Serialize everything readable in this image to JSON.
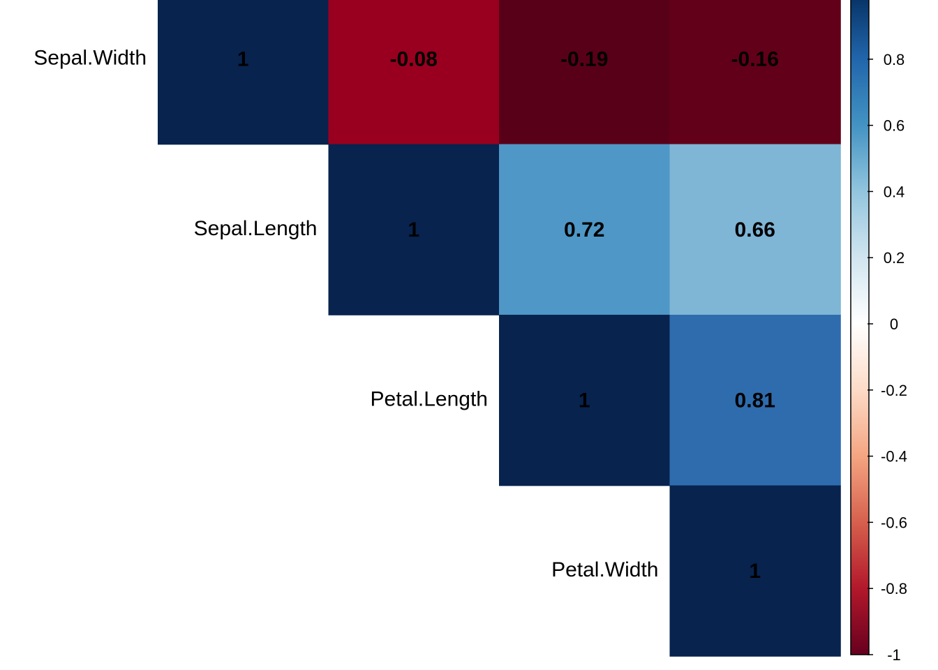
{
  "chart_data": {
    "type": "heatmap",
    "variables": [
      "Sepal.Width",
      "Sepal.Length",
      "Petal.Length",
      "Petal.Width"
    ],
    "row_labels": [
      "Sepal.Width",
      "Sepal.Length",
      "Petal.Length",
      "Petal.Width"
    ],
    "triangle": "upper",
    "cells": [
      {
        "row": 0,
        "col": 0,
        "value": 1,
        "label": "1"
      },
      {
        "row": 0,
        "col": 1,
        "value": -0.08,
        "label": "-0.08"
      },
      {
        "row": 0,
        "col": 2,
        "value": -0.19,
        "label": "-0.19"
      },
      {
        "row": 0,
        "col": 3,
        "value": -0.16,
        "label": "-0.16"
      },
      {
        "row": 1,
        "col": 1,
        "value": 1,
        "label": "1"
      },
      {
        "row": 1,
        "col": 2,
        "value": 0.72,
        "label": "0.72"
      },
      {
        "row": 1,
        "col": 3,
        "value": 0.66,
        "label": "0.66"
      },
      {
        "row": 2,
        "col": 2,
        "value": 1,
        "label": "1"
      },
      {
        "row": 2,
        "col": 3,
        "value": 0.81,
        "label": "0.81"
      },
      {
        "row": 3,
        "col": 3,
        "value": 1,
        "label": "1"
      }
    ],
    "cell_colors": {
      "0-0": "#08234E",
      "0-1": "#99001F",
      "0-2": "#590019",
      "0-3": "#620019",
      "1-1": "#08234E",
      "1-2": "#4F97C6",
      "1-3": "#7FB5D5",
      "2-2": "#08234E",
      "2-3": "#2E6CAD",
      "3-3": "#08234E"
    },
    "colorbar": {
      "range": [
        -1,
        1
      ],
      "placement": "right",
      "ticks": [
        {
          "value": 0.8,
          "label": "0.8"
        },
        {
          "value": 0.6,
          "label": "0.6"
        },
        {
          "value": 0.4,
          "label": "0.4"
        },
        {
          "value": 0.2,
          "label": "0.2"
        },
        {
          "value": 0,
          "label": "0"
        },
        {
          "value": -0.2,
          "label": "-0.2"
        },
        {
          "value": -0.4,
          "label": "-0.4"
        },
        {
          "value": -0.6,
          "label": "-0.6"
        },
        {
          "value": -0.8,
          "label": "-0.8"
        },
        {
          "value": -1,
          "label": "-1"
        }
      ],
      "stops": [
        {
          "value": -1.0,
          "color": "#67001F"
        },
        {
          "value": -0.8,
          "color": "#B2182B"
        },
        {
          "value": -0.6,
          "color": "#D6604D"
        },
        {
          "value": -0.4,
          "color": "#F4A582"
        },
        {
          "value": -0.2,
          "color": "#FDDBC7"
        },
        {
          "value": 0.0,
          "color": "#FFFFFF"
        },
        {
          "value": 0.2,
          "color": "#D1E5F0"
        },
        {
          "value": 0.4,
          "color": "#92C5DE"
        },
        {
          "value": 0.6,
          "color": "#4393C3"
        },
        {
          "value": 0.8,
          "color": "#2166AC"
        },
        {
          "value": 1.0,
          "color": "#053061"
        }
      ]
    }
  }
}
